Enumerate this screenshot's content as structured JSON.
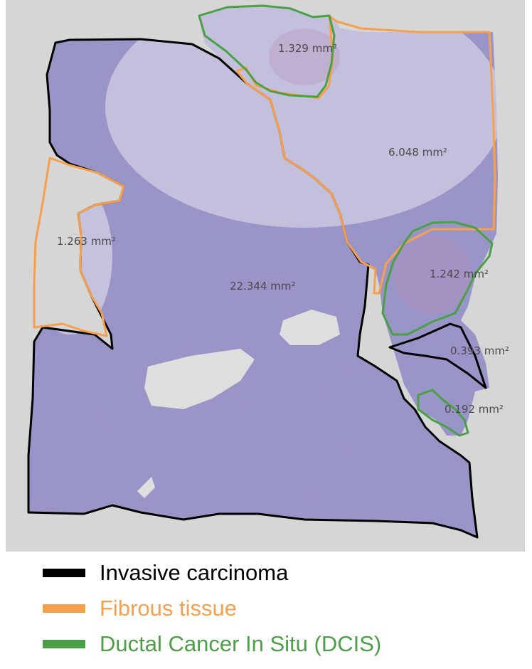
{
  "figure": {
    "regions": [
      {
        "area_label": "22.344 mm²",
        "tissue": "Invasive carcinoma"
      },
      {
        "area_label": "1.263 mm²",
        "tissue": "Fibrous tissue"
      },
      {
        "area_label": "6.048 mm²",
        "tissue": "Fibrous tissue"
      },
      {
        "area_label": "1.329 mm²",
        "tissue": "Ductal Cancer In Situ (DCIS)"
      },
      {
        "area_label": "1.242 mm²",
        "tissue": "Ductal Cancer In Situ (DCIS)"
      },
      {
        "area_label": "0.393 mm²",
        "tissue": "Invasive carcinoma"
      },
      {
        "area_label": "0.192 mm²",
        "tissue": "Ductal Cancer In Situ (DCIS)"
      }
    ]
  },
  "legend": {
    "items": [
      {
        "label": "Invasive carcinoma",
        "color": "#000000"
      },
      {
        "label": "Fibrous tissue",
        "color": "#f7a04c"
      },
      {
        "label": "Ductal Cancer In Situ (DCIS)",
        "color": "#4ba046"
      }
    ]
  },
  "colors": {
    "background": "#d5d5d5",
    "tissue_stain": "#8e89c2"
  }
}
